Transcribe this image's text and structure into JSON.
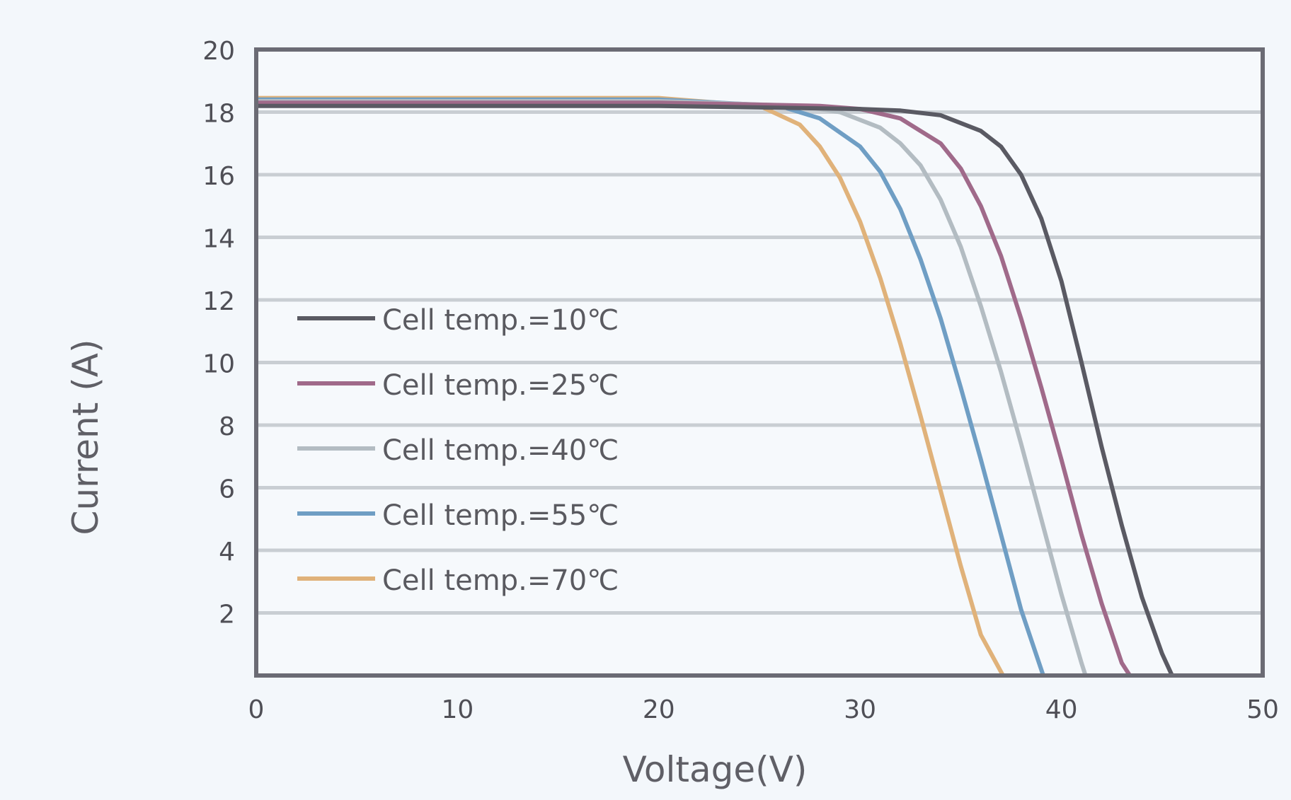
{
  "chart_data": {
    "type": "line",
    "title": "",
    "xlabel": "Voltage(V)",
    "ylabel": "Current  (A)",
    "xlim": [
      0,
      50
    ],
    "ylim": [
      0,
      20
    ],
    "xticks": [
      0,
      10,
      20,
      30,
      40,
      50
    ],
    "yticks": [
      2,
      4,
      6,
      8,
      10,
      12,
      14,
      16,
      18,
      20
    ],
    "grid": "horizontal",
    "legend_position": "left-middle",
    "series": [
      {
        "name": "Cell temp.=10℃",
        "color": "#5a5a63",
        "x": [
          0,
          20,
          30,
          32,
          34,
          36,
          37,
          38,
          39,
          40,
          41,
          42,
          43,
          44,
          45,
          45.5
        ],
        "y": [
          18.2,
          18.2,
          18.1,
          18.05,
          17.9,
          17.4,
          16.9,
          16.0,
          14.6,
          12.6,
          10.0,
          7.3,
          4.8,
          2.5,
          0.7,
          0
        ]
      },
      {
        "name": "Cell temp.=25℃",
        "color": "#a06a8a",
        "x": [
          0,
          20,
          28,
          30,
          32,
          34,
          35,
          36,
          37,
          38,
          39,
          40,
          41,
          42,
          43,
          43.4
        ],
        "y": [
          18.3,
          18.3,
          18.2,
          18.1,
          17.8,
          17.0,
          16.2,
          15.0,
          13.4,
          11.4,
          9.2,
          6.9,
          4.5,
          2.3,
          0.4,
          0
        ]
      },
      {
        "name": "Cell temp.=40℃",
        "color": "#b3bcc2",
        "x": [
          0,
          20,
          27,
          29,
          31,
          32,
          33,
          34,
          35,
          36,
          37,
          38,
          39,
          40,
          41,
          41.2
        ],
        "y": [
          18.35,
          18.35,
          18.2,
          18.0,
          17.5,
          17.0,
          16.3,
          15.2,
          13.7,
          11.8,
          9.7,
          7.4,
          5.0,
          2.6,
          0.4,
          0
        ]
      },
      {
        "name": "Cell temp.=55℃",
        "color": "#6f9ec4",
        "x": [
          0,
          20,
          26,
          28,
          30,
          31,
          32,
          33,
          34,
          35,
          36,
          37,
          38,
          39.1
        ],
        "y": [
          18.4,
          18.4,
          18.2,
          17.8,
          16.9,
          16.1,
          14.9,
          13.3,
          11.4,
          9.2,
          6.9,
          4.5,
          2.1,
          0
        ]
      },
      {
        "name": "Cell temp.=70℃",
        "color": "#e0b27a",
        "x": [
          0,
          20,
          25,
          27,
          28,
          29,
          30,
          31,
          32,
          33,
          34,
          35,
          36,
          37.1
        ],
        "y": [
          18.45,
          18.45,
          18.2,
          17.6,
          16.9,
          15.9,
          14.5,
          12.7,
          10.6,
          8.3,
          5.9,
          3.5,
          1.3,
          0
        ]
      }
    ]
  }
}
